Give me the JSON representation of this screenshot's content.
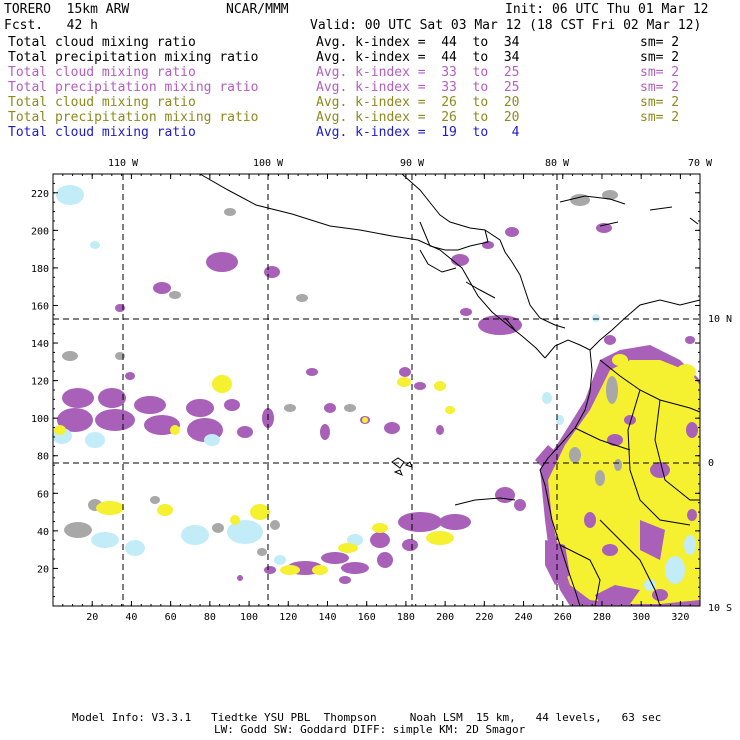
{
  "header": {
    "model": "TORERO  15km ARW",
    "org": "NCAR/MMM",
    "init": "Init: 06 UTC Thu 01 Mar 12",
    "fcst": "Fcst.   42 h",
    "valid": "Valid: 00 UTC Sat 03 Mar 12 (18 CST Fri 02 Mar 12)"
  },
  "legend": [
    {
      "field": "Total cloud mixing ratio",
      "kindex": "Avg. k-index =  44  to  34",
      "sm": "sm= 2",
      "color": "#000000"
    },
    {
      "field": "Total precipitation mixing ratio",
      "kindex": "Avg. k-index =  44  to  34",
      "sm": "sm= 2",
      "color": "#000000"
    },
    {
      "field": "Total cloud mixing ratio",
      "kindex": "Avg. k-index =  33  to  25",
      "sm": "sm= 2",
      "color": "#b25fc0"
    },
    {
      "field": "Total precipitation mixing ratio",
      "kindex": "Avg. k-index =  33  to  25",
      "sm": "sm= 2",
      "color": "#b25fc0"
    },
    {
      "field": "Total cloud mixing ratio",
      "kindex": "Avg. k-index =  26  to  20",
      "sm": "sm= 2",
      "color": "#8c8a1e"
    },
    {
      "field": "Total precipitation mixing ratio",
      "kindex": "Avg. k-index =  26  to  20",
      "sm": "sm= 2",
      "color": "#8c8a1e"
    },
    {
      "field": "Total cloud mixing ratio",
      "kindex": "Avg. k-index =  19  to   4",
      "sm": "",
      "color": "#1c1ccc"
    }
  ],
  "map": {
    "lon_labels": [
      "110 W",
      "100 W",
      "90 W",
      "80 W",
      "70 W"
    ],
    "lat_labels": [
      "10 N",
      "0",
      "10 S"
    ],
    "x_ticks": [
      "20",
      "40",
      "60",
      "80",
      "100",
      "120",
      "140",
      "160",
      "180",
      "200",
      "220",
      "240",
      "260",
      "280",
      "300",
      "320"
    ],
    "y_ticks": [
      "20",
      "40",
      "60",
      "80",
      "100",
      "120",
      "140",
      "160",
      "180",
      "200",
      "220"
    ],
    "colors": {
      "purple": "#a860b8",
      "yellow": "#f5f030",
      "lightblue": "#c2ecf8",
      "gray": "#a8a8a8",
      "coast": "#000000"
    }
  },
  "footer": {
    "line1": "Model Info: V3.3.1   Tiedtke YSU PBL  Thompson     Noah LSM  15 km,   44 levels,   63 sec",
    "line2": "LW: Godd SW: Goddard DIFF: simple KM: 2D Smagor"
  }
}
